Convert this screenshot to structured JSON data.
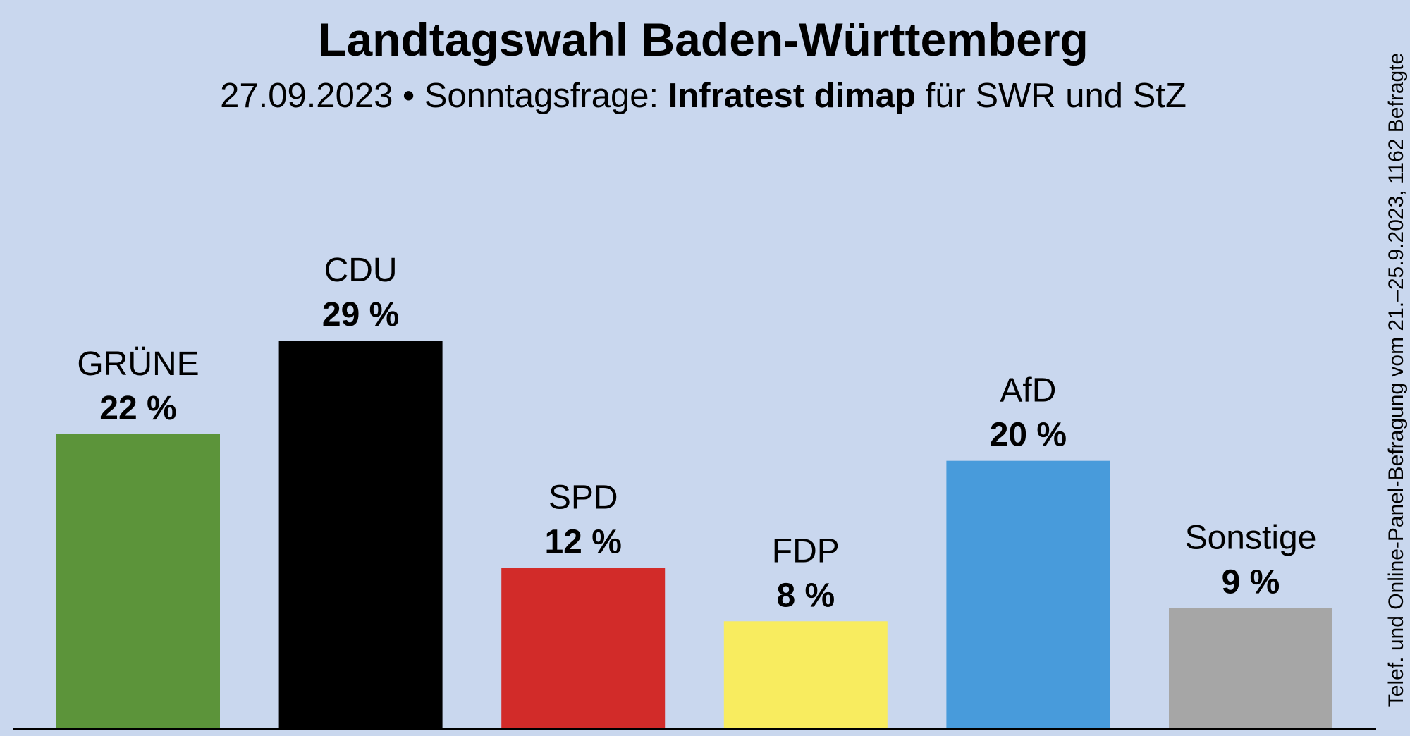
{
  "chart_data": {
    "type": "bar",
    "title": "Landtagswahl Baden-Württemberg",
    "subtitle": {
      "date": "27.09.2023",
      "bullet": "•",
      "label": "Sonntagsfrage:",
      "institute": "Infratest dimap",
      "client": "für SWR und StZ"
    },
    "source_note": "Telef. und Online-Panel-Befragung vom 21.–25.9.2023, 1162 Befragte",
    "categories": [
      "GRÜNE",
      "CDU",
      "SPD",
      "FDP",
      "AfD",
      "Sonstige"
    ],
    "values": [
      22,
      29,
      12,
      8,
      20,
      9
    ],
    "value_labels": [
      "22 %",
      "29 %",
      "12 %",
      "8 %",
      "20 %",
      "9 %"
    ],
    "colors": [
      "#5c943a",
      "#000000",
      "#d22b29",
      "#f8ec5f",
      "#489bdb",
      "#a6a6a6"
    ],
    "unit": "%",
    "xlabel": "",
    "ylabel": "",
    "ylim": [
      0,
      29
    ],
    "grid": false
  }
}
